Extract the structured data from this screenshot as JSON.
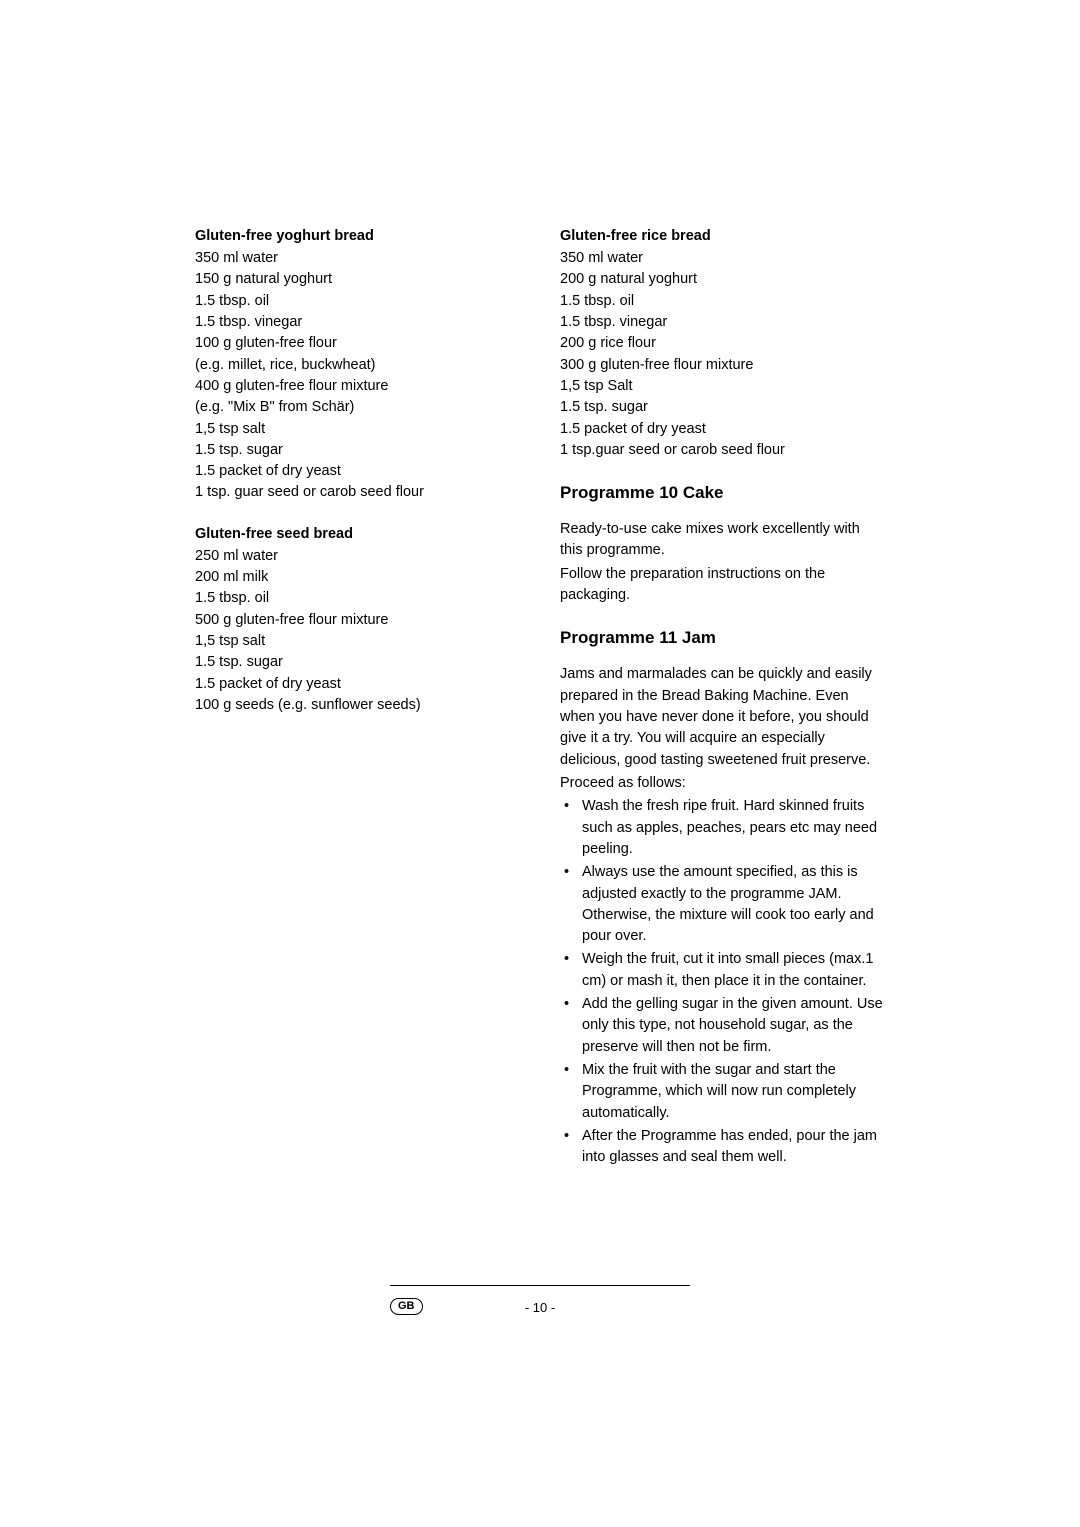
{
  "left": {
    "r1": {
      "title": "Gluten-free yoghurt bread",
      "lines": [
        "350 ml water",
        "150 g natural yoghurt",
        "1.5 tbsp. oil",
        "1.5 tbsp. vinegar",
        "100 g gluten-free flour",
        "(e.g. millet, rice, buckwheat)",
        "400 g gluten-free flour mixture",
        "(e.g. \"Mix B\" from Schär)",
        "1,5 tsp salt",
        "1.5 tsp. sugar",
        "1.5 packet of dry yeast",
        "1 tsp. guar seed or carob seed flour"
      ]
    },
    "r2": {
      "title": "Gluten-free seed bread",
      "lines": [
        "250 ml water",
        "200 ml milk",
        "1.5 tbsp. oil",
        "500 g gluten-free flour mixture",
        "1,5 tsp salt",
        "1.5 tsp. sugar",
        "1.5 packet of dry yeast",
        "100 g seeds (e.g. sunflower seeds)"
      ]
    }
  },
  "right": {
    "r3": {
      "title": "Gluten-free rice bread",
      "lines": [
        "350 ml water",
        "200 g natural yoghurt",
        "1.5 tbsp. oil",
        "1.5 tbsp. vinegar",
        "200 g rice flour",
        "300 g gluten-free flour mixture",
        "1,5 tsp Salt",
        "1.5 tsp. sugar",
        "1.5 packet of dry yeast",
        "1 tsp.guar seed or carob seed flour"
      ]
    },
    "prog10": {
      "title": "Programme 10 Cake",
      "p1": "Ready-to-use cake mixes work excellently with this programme.",
      "p2": "Follow the preparation instructions on the packaging."
    },
    "prog11": {
      "title": "Programme 11 Jam",
      "p1": "Jams and marmalades can be quickly and easily prepared in the Bread Baking Machine. Even when you have never done it before, you should give it a try. You will acquire an especially delicious, good tasting sweetened fruit preserve.",
      "p2": "Proceed as follows:",
      "bullets": [
        "Wash the fresh ripe fruit. Hard skinned fruits such as apples, peaches, pears etc may need peeling.",
        "Always use the amount specified, as this is adjusted exactly to the programme JAM. Otherwise, the mixture will cook too early and pour over.",
        "Weigh the fruit, cut it into small pieces (max.1 cm) or mash it, then place it in the container.",
        "Add the gelling sugar in the given amount. Use only this type, not household sugar, as the preserve will then not be firm.",
        "Mix the fruit with the sugar and start the Programme, which will now run completely automatically.",
        "After the Programme has ended, pour the jam into glasses and seal them well."
      ]
    }
  },
  "footer": {
    "badge": "GB",
    "page": "- 10 -"
  }
}
